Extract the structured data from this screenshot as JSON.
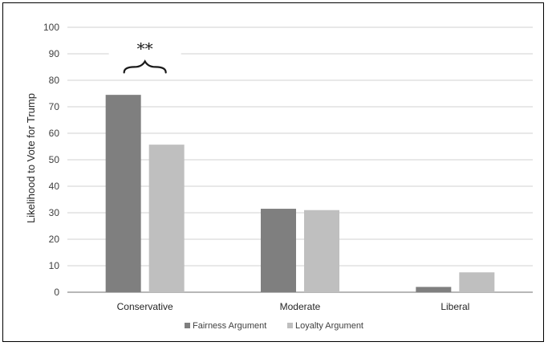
{
  "chart_data": {
    "type": "bar",
    "categories": [
      "Conservative",
      "Moderate",
      "Liberal"
    ],
    "series": [
      {
        "name": "Fairness Argument",
        "values": [
          74.5,
          31.5,
          2
        ],
        "color": "#7f7f7f"
      },
      {
        "name": "Loyalty Argument",
        "values": [
          55.7,
          31,
          7.5
        ],
        "color": "#bfbfbf"
      }
    ],
    "title": "",
    "xlabel": "",
    "ylabel": "Likelihood to Vote for Trump",
    "ylim": [
      0,
      100
    ],
    "yticks": [
      0,
      10,
      20,
      30,
      40,
      50,
      60,
      70,
      80,
      90,
      100
    ],
    "grid": true,
    "legend_position": "bottom",
    "annotations": [
      {
        "text": "**",
        "category": "Conservative",
        "value": 92
      }
    ]
  }
}
